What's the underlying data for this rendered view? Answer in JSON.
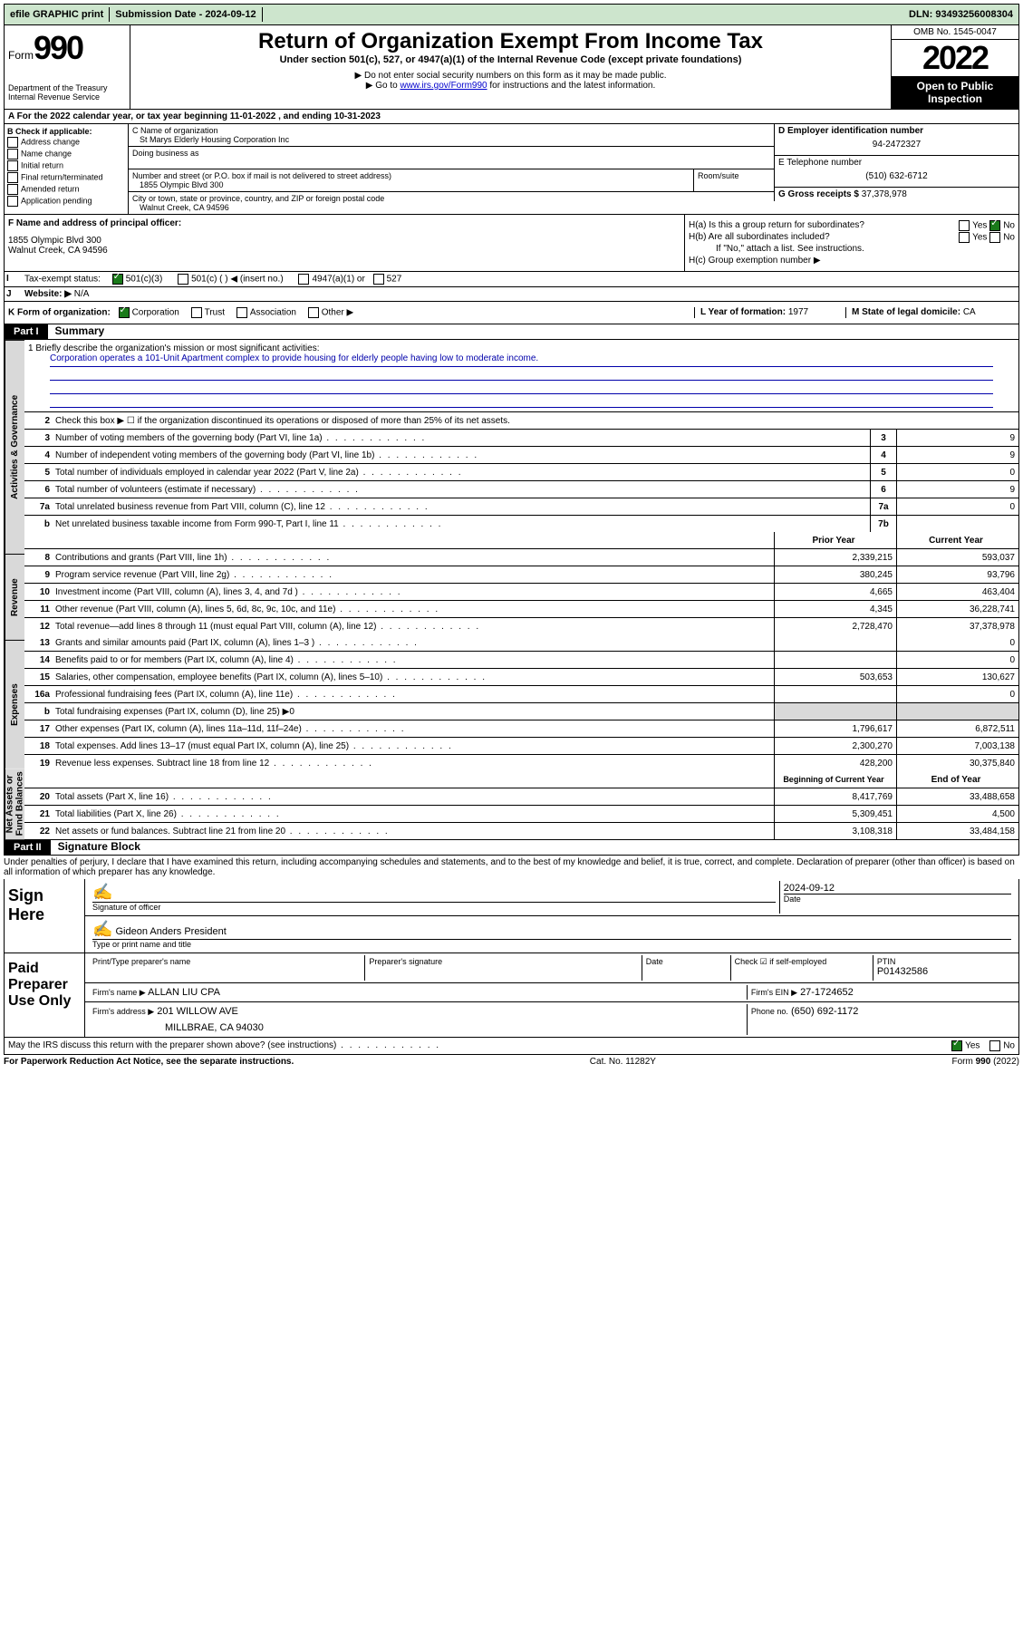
{
  "topbar": {
    "efile": "efile GRAPHIC print",
    "submission": "Submission Date - 2024-09-12",
    "dln": "DLN: 93493256008304"
  },
  "header": {
    "form_label": "Form",
    "form_num": "990",
    "dept": "Department of the Treasury",
    "irs": "Internal Revenue Service",
    "title": "Return of Organization Exempt From Income Tax",
    "sub": "Under section 501(c), 527, or 4947(a)(1) of the Internal Revenue Code (except private foundations)",
    "note1": "▶ Do not enter social security numbers on this form as it may be made public.",
    "note2_pre": "▶ Go to ",
    "note2_link": "www.irs.gov/Form990",
    "note2_post": " for instructions and the latest information.",
    "omb": "OMB No. 1545-0047",
    "year": "2022",
    "open": "Open to Public Inspection"
  },
  "period": "For the 2022 calendar year, or tax year beginning 11-01-2022    , and ending 10-31-2023",
  "B": {
    "label": "B Check if applicable:",
    "items": [
      "Address change",
      "Name change",
      "Initial return",
      "Final return/terminated",
      "Amended return",
      "Application pending"
    ]
  },
  "C": {
    "name_label": "C Name of organization",
    "name": "St Marys Elderly Housing Corporation Inc",
    "dba_label": "Doing business as",
    "addr_label": "Number and street (or P.O. box if mail is not delivered to street address)",
    "room_label": "Room/suite",
    "addr": "1855 Olympic Blvd 300",
    "city_label": "City or town, state or province, country, and ZIP or foreign postal code",
    "city": "Walnut Creek, CA  94596"
  },
  "D": {
    "label": "D Employer identification number",
    "val": "94-2472327"
  },
  "E": {
    "label": "E Telephone number",
    "val": "(510) 632-6712"
  },
  "G": {
    "label": "G Gross receipts $",
    "val": "37,378,978"
  },
  "F": {
    "label": "F  Name and address of principal officer:",
    "addr1": "1855 Olympic Blvd 300",
    "addr2": "Walnut Creek, CA  94596"
  },
  "H": {
    "a": "H(a)  Is this a group return for subordinates?",
    "b": "H(b)  Are all subordinates included?",
    "b_note": "If \"No,\" attach a list. See instructions.",
    "c": "H(c)  Group exemption number ▶",
    "yes": "Yes",
    "no": "No"
  },
  "I": {
    "label": "Tax-exempt status:",
    "opts": [
      "501(c)(3)",
      "501(c) (  ) ◀ (insert no.)",
      "4947(a)(1) or",
      "527"
    ]
  },
  "J": {
    "label": "Website: ▶",
    "val": "N/A"
  },
  "K": {
    "label": "K Form of organization:",
    "opts": [
      "Corporation",
      "Trust",
      "Association",
      "Other ▶"
    ]
  },
  "L": {
    "label": "L Year of formation:",
    "val": "1977"
  },
  "M": {
    "label": "M State of legal domicile:",
    "val": "CA"
  },
  "part1": {
    "label": "Part I",
    "title": "Summary"
  },
  "mission": {
    "q": "1   Briefly describe the organization's mission or most significant activities:",
    "text": "Corporation operates a 101-Unit Apartment complex to provide housing for elderly people having low to moderate income."
  },
  "vtabs": [
    "Activities & Governance",
    "Revenue",
    "Expenses",
    "Net Assets or Fund Balances"
  ],
  "lines_gov": [
    {
      "n": "2",
      "d": "Check this box ▶ ☐ if the organization discontinued its operations or disposed of more than 25% of its net assets."
    },
    {
      "n": "3",
      "d": "Number of voting members of the governing body (Part VI, line 1a)",
      "box": "3",
      "v": "9"
    },
    {
      "n": "4",
      "d": "Number of independent voting members of the governing body (Part VI, line 1b)",
      "box": "4",
      "v": "9"
    },
    {
      "n": "5",
      "d": "Total number of individuals employed in calendar year 2022 (Part V, line 2a)",
      "box": "5",
      "v": "0"
    },
    {
      "n": "6",
      "d": "Total number of volunteers (estimate if necessary)",
      "box": "6",
      "v": "9"
    },
    {
      "n": "7a",
      "d": "Total unrelated business revenue from Part VIII, column (C), line 12",
      "box": "7a",
      "v": "0"
    },
    {
      "n": "b",
      "d": "Net unrelated business taxable income from Form 990-T, Part I, line 11",
      "box": "7b",
      "v": ""
    }
  ],
  "col_headers": {
    "prior": "Prior Year",
    "current": "Current Year"
  },
  "lines_rev": [
    {
      "n": "8",
      "d": "Contributions and grants (Part VIII, line 1h)",
      "p": "2,339,215",
      "c": "593,037"
    },
    {
      "n": "9",
      "d": "Program service revenue (Part VIII, line 2g)",
      "p": "380,245",
      "c": "93,796"
    },
    {
      "n": "10",
      "d": "Investment income (Part VIII, column (A), lines 3, 4, and 7d )",
      "p": "4,665",
      "c": "463,404"
    },
    {
      "n": "11",
      "d": "Other revenue (Part VIII, column (A), lines 5, 6d, 8c, 9c, 10c, and 11e)",
      "p": "4,345",
      "c": "36,228,741"
    },
    {
      "n": "12",
      "d": "Total revenue—add lines 8 through 11 (must equal Part VIII, column (A), line 12)",
      "p": "2,728,470",
      "c": "37,378,978"
    }
  ],
  "lines_exp": [
    {
      "n": "13",
      "d": "Grants and similar amounts paid (Part IX, column (A), lines 1–3 )",
      "p": "",
      "c": "0"
    },
    {
      "n": "14",
      "d": "Benefits paid to or for members (Part IX, column (A), line 4)",
      "p": "",
      "c": "0"
    },
    {
      "n": "15",
      "d": "Salaries, other compensation, employee benefits (Part IX, column (A), lines 5–10)",
      "p": "503,653",
      "c": "130,627"
    },
    {
      "n": "16a",
      "d": "Professional fundraising fees (Part IX, column (A), line 11e)",
      "p": "",
      "c": "0"
    },
    {
      "n": "b",
      "d": "Total fundraising expenses (Part IX, column (D), line 25) ▶0",
      "shade": true
    },
    {
      "n": "17",
      "d": "Other expenses (Part IX, column (A), lines 11a–11d, 11f–24e)",
      "p": "1,796,617",
      "c": "6,872,511"
    },
    {
      "n": "18",
      "d": "Total expenses. Add lines 13–17 (must equal Part IX, column (A), line 25)",
      "p": "2,300,270",
      "c": "7,003,138"
    },
    {
      "n": "19",
      "d": "Revenue less expenses. Subtract line 18 from line 12",
      "p": "428,200",
      "c": "30,375,840"
    }
  ],
  "col_headers2": {
    "beg": "Beginning of Current Year",
    "end": "End of Year"
  },
  "lines_net": [
    {
      "n": "20",
      "d": "Total assets (Part X, line 16)",
      "p": "8,417,769",
      "c": "33,488,658"
    },
    {
      "n": "21",
      "d": "Total liabilities (Part X, line 26)",
      "p": "5,309,451",
      "c": "4,500"
    },
    {
      "n": "22",
      "d": "Net assets or fund balances. Subtract line 21 from line 20",
      "p": "3,108,318",
      "c": "33,484,158"
    }
  ],
  "part2": {
    "label": "Part II",
    "title": "Signature Block"
  },
  "penalties": "Under penalties of perjury, I declare that I have examined this return, including accompanying schedules and statements, and to the best of my knowledge and belief, it is true, correct, and complete. Declaration of preparer (other than officer) is based on all information of which preparer has any knowledge.",
  "sign": {
    "label": "Sign Here",
    "sig_officer": "Signature of officer",
    "date": "Date",
    "date_val": "2024-09-12",
    "name": "Gideon Anders  President",
    "name_label": "Type or print name and title"
  },
  "paid": {
    "label": "Paid Preparer Use Only",
    "print_label": "Print/Type preparer's name",
    "sig_label": "Preparer's signature",
    "date_label": "Date",
    "check_label": "Check ☑ if self-employed",
    "ptin_label": "PTIN",
    "ptin": "P01432586",
    "firm_name_label": "Firm's name    ▶",
    "firm_name": "ALLAN LIU CPA",
    "firm_ein_label": "Firm's EIN ▶",
    "firm_ein": "27-1724652",
    "firm_addr_label": "Firm's address ▶",
    "firm_addr1": "201 WILLOW AVE",
    "firm_addr2": "MILLBRAE, CA  94030",
    "phone_label": "Phone no.",
    "phone": "(650) 692-1172"
  },
  "may_irs": "May the IRS discuss this return with the preparer shown above? (see instructions)",
  "footer": {
    "left": "For Paperwork Reduction Act Notice, see the separate instructions.",
    "mid": "Cat. No. 11282Y",
    "right": "Form 990 (2022)"
  }
}
